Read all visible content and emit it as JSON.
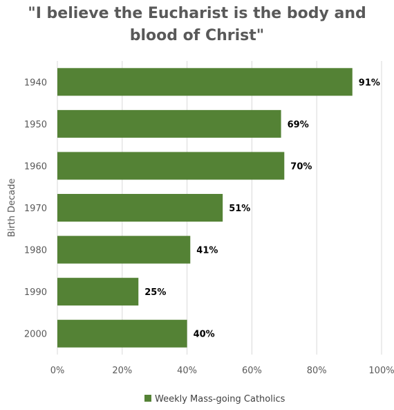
{
  "chart_data": {
    "type": "bar",
    "orientation": "horizontal",
    "title": "\"I believe the Eucharist is the body and blood of Christ\"",
    "xlabel": "",
    "ylabel": "Birth Decade",
    "categories": [
      "1940",
      "1950",
      "1960",
      "1970",
      "1980",
      "1990",
      "2000"
    ],
    "series": [
      {
        "name": "Weekly Mass-going Catholics",
        "values": [
          91,
          69,
          70,
          51,
          41,
          25,
          40
        ],
        "color": "#548235"
      }
    ],
    "data_labels": [
      "91%",
      "69%",
      "70%",
      "51%",
      "41%",
      "25%",
      "40%"
    ],
    "xlim": [
      0,
      100
    ],
    "x_ticks": [
      "0%",
      "20%",
      "40%",
      "60%",
      "80%",
      "100%"
    ],
    "grid": "vertical",
    "legend_position": "bottom"
  }
}
